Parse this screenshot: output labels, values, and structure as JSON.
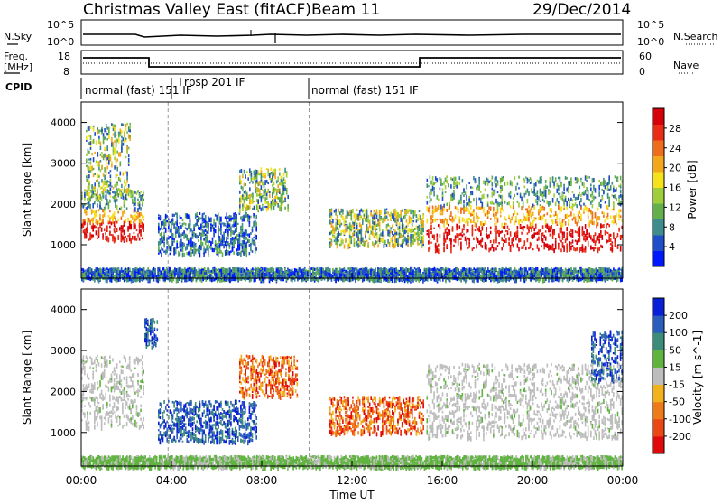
{
  "header": {
    "title": "Christmas Valley East (fitACF)",
    "beam": "Beam 11",
    "date": "29/Dec/2014"
  },
  "top_panels": {
    "nsky_label": "N.Sky",
    "nsky_ticks": [
      "10^5",
      "10^0"
    ],
    "nsearch_label": "N.Search",
    "nsearch_ticks": [
      "10^5",
      "10^0"
    ],
    "freq_label_1": "Freq.",
    "freq_label_2": "[MHz]",
    "freq_ticks": [
      "18",
      "8"
    ],
    "nave_label": "Nave",
    "nave_ticks": [
      "60",
      "0"
    ],
    "cpid_label": "CPID",
    "cpid_segments": [
      "normal (fast) 151 IF",
      "rbsp 201 IF",
      "normal (fast) 151 IF"
    ]
  },
  "chart_data": [
    {
      "type": "heatmap",
      "panel": "power",
      "ylabel": "Slant Range [km]",
      "ylim": [
        180,
        4500
      ],
      "yticks": [
        "1000",
        "2000",
        "3000",
        "4000"
      ],
      "xlim_hours": [
        0,
        24
      ],
      "colorbar_label": "Power [dB]",
      "colorbar_ticks": [
        "4",
        "8",
        "12",
        "16",
        "20",
        "24",
        "28"
      ],
      "colors": [
        "#0018ff",
        "#204ec8",
        "#3f8c8c",
        "#63b04a",
        "#9fce3a",
        "#f6e21a",
        "#f2a81a",
        "#ee6d1c",
        "#ea2b16",
        "#d6000a"
      ],
      "echo_regions": [
        {
          "t0": 0.0,
          "t1": 2.8,
          "r0": 1150,
          "r1": 2400,
          "level": "high",
          "note": "early evening band"
        },
        {
          "t0": 0.2,
          "t1": 2.2,
          "r0": 2200,
          "r1": 4000,
          "level": "medium"
        },
        {
          "t0": 3.4,
          "t1": 7.8,
          "r0": 800,
          "r1": 1800,
          "level": "low",
          "note": "diagonal striations"
        },
        {
          "t0": 7.0,
          "t1": 9.2,
          "r0": 1900,
          "r1": 2900,
          "level": "medium"
        },
        {
          "t0": 11.0,
          "t1": 15.2,
          "r0": 1000,
          "r1": 1900,
          "level": "medium"
        },
        {
          "t0": 15.3,
          "t1": 24.0,
          "r0": 900,
          "r1": 2700,
          "level": "high",
          "note": "strong post-16 UT band"
        },
        {
          "t0": 0.0,
          "t1": 24.0,
          "r0": 180,
          "r1": 450,
          "level": "low",
          "note": "near-range ground scatter"
        }
      ]
    },
    {
      "type": "heatmap",
      "panel": "velocity",
      "ylabel": "Slant Range [km]",
      "xlabel": "Time UT",
      "ylim": [
        180,
        4500
      ],
      "yticks": [
        "1000",
        "2000",
        "3000",
        "4000"
      ],
      "xticks": [
        "00:00",
        "04:00",
        "08:00",
        "12:00",
        "16:00",
        "20:00",
        "00:00"
      ],
      "xlim_hours": [
        0,
        24
      ],
      "colorbar_label": "Velocity [m s^-1]",
      "colorbar_ticks": [
        "200",
        "100",
        "50",
        "15",
        "-15",
        "-50",
        "-100",
        "-200"
      ],
      "colors": [
        "#0a1fd8",
        "#2a5dbc",
        "#3c8c7a",
        "#5fb43e",
        "#bdbdbd",
        "#f2b21c",
        "#ef7a1a",
        "#eb4715",
        "#e00a0a"
      ],
      "echo_regions": [
        {
          "t0": 0.0,
          "t1": 2.8,
          "r0": 1150,
          "r1": 2900,
          "level": "ground"
        },
        {
          "t0": 2.8,
          "t1": 3.4,
          "r0": 3100,
          "r1": 3800,
          "level": "positive"
        },
        {
          "t0": 3.4,
          "t1": 7.8,
          "r0": 800,
          "r1": 1800,
          "level": "positive"
        },
        {
          "t0": 7.0,
          "t1": 9.6,
          "r0": 1900,
          "r1": 2900,
          "level": "negative"
        },
        {
          "t0": 11.0,
          "t1": 15.2,
          "r0": 1000,
          "r1": 1900,
          "level": "negative"
        },
        {
          "t0": 15.3,
          "t1": 24.0,
          "r0": 900,
          "r1": 2700,
          "level": "ground"
        },
        {
          "t0": 22.6,
          "t1": 24.0,
          "r0": 2300,
          "r1": 3500,
          "level": "positive"
        },
        {
          "t0": 0.0,
          "t1": 24.0,
          "r0": 180,
          "r1": 450,
          "level": "weak-positive"
        }
      ]
    }
  ]
}
